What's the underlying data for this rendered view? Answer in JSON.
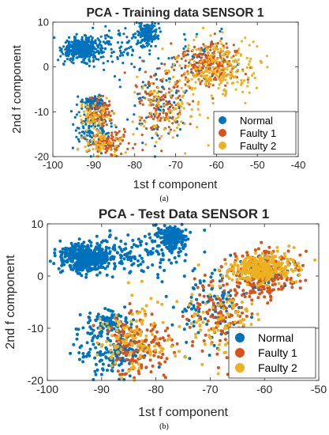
{
  "captions": [
    "(a)",
    "(b)"
  ],
  "colors": {
    "Normal": "#0072BD",
    "Faulty 1": "#D95319",
    "Faulty 2": "#EDB120"
  },
  "chart_data": [
    {
      "type": "scatter",
      "title": "PCA - Training data SENSOR 1",
      "xlabel": "1st f component",
      "ylabel": "2nd f component",
      "xlim": [
        -100,
        -40
      ],
      "ylim": [
        -20,
        10
      ],
      "xticks": [
        -100,
        -90,
        -80,
        -70,
        -60,
        -50,
        -40
      ],
      "yticks": [
        -20,
        -10,
        0,
        10
      ],
      "grid": false,
      "legend_position": "bottom-right",
      "series": [
        {
          "name": "Normal",
          "clusters": [
            {
              "cx": -93,
              "cy": 4,
              "sx": 2.2,
              "sy": 1.2,
              "n": 420
            },
            {
              "cx": -77,
              "cy": 7.5,
              "sx": 1.3,
              "sy": 1.3,
              "n": 180
            },
            {
              "cx": -85,
              "cy": 4.5,
              "sx": 5,
              "sy": 2.2,
              "n": 120
            },
            {
              "cx": -90,
              "cy": -8,
              "sx": 1.3,
              "sy": 0.9,
              "n": 90
            },
            {
              "cx": -90,
              "cy": -14,
              "sx": 2.2,
              "sy": 2.5,
              "n": 120
            },
            {
              "cx": -74,
              "cy": -8,
              "sx": 3.5,
              "sy": 4,
              "n": 90
            },
            {
              "cx": -63,
              "cy": 2,
              "sx": 4,
              "sy": 2.5,
              "n": 50
            }
          ]
        },
        {
          "name": "Faulty 1",
          "clusters": [
            {
              "cx": -62,
              "cy": 1,
              "sx": 4,
              "sy": 2.5,
              "n": 220
            },
            {
              "cx": -73,
              "cy": -8,
              "sx": 3.5,
              "sy": 4,
              "n": 130
            },
            {
              "cx": -88,
              "cy": -10,
              "sx": 1.5,
              "sy": 1.8,
              "n": 70
            },
            {
              "cx": -86,
              "cy": -17,
              "sx": 2.5,
              "sy": 1.3,
              "n": 90
            }
          ]
        },
        {
          "name": "Faulty 2",
          "clusters": [
            {
              "cx": -60,
              "cy": 0,
              "sx": 5,
              "sy": 3,
              "n": 230
            },
            {
              "cx": -72,
              "cy": -9,
              "sx": 4,
              "sy": 4,
              "n": 100
            },
            {
              "cx": -90,
              "cy": -11,
              "sx": 1.8,
              "sy": 1.8,
              "n": 60
            },
            {
              "cx": -88,
              "cy": -17,
              "sx": 2.5,
              "sy": 1.4,
              "n": 60
            }
          ]
        }
      ]
    },
    {
      "type": "scatter",
      "title": "PCA - Test Data SENSOR 1",
      "xlabel": "1st f component",
      "ylabel": "2nd f component",
      "xlim": [
        -100,
        -50
      ],
      "ylim": [
        -20,
        10
      ],
      "xticks": [
        -100,
        -90,
        -80,
        -70,
        -60,
        -50
      ],
      "yticks": [
        -20,
        -10,
        0,
        10
      ],
      "grid": false,
      "legend_position": "bottom-right",
      "series": [
        {
          "name": "Normal",
          "clusters": [
            {
              "cx": -93,
              "cy": 3.5,
              "sx": 2.3,
              "sy": 1.3,
              "n": 480
            },
            {
              "cx": -77,
              "cy": 7.5,
              "sx": 1.2,
              "sy": 1.3,
              "n": 220
            },
            {
              "cx": -85,
              "cy": 4,
              "sx": 5,
              "sy": 2.2,
              "n": 140
            },
            {
              "cx": -89,
              "cy": -9,
              "sx": 2.5,
              "sy": 1.3,
              "n": 100
            },
            {
              "cx": -88,
              "cy": -15,
              "sx": 3,
              "sy": 2.3,
              "n": 150
            },
            {
              "cx": -70,
              "cy": -6,
              "sx": 3.5,
              "sy": 3.5,
              "n": 100
            },
            {
              "cx": -61,
              "cy": 1,
              "sx": 3,
              "sy": 1.8,
              "n": 60
            }
          ]
        },
        {
          "name": "Faulty 1",
          "clusters": [
            {
              "cx": -60,
              "cy": 0,
              "sx": 3.2,
              "sy": 2.5,
              "n": 220
            },
            {
              "cx": -68,
              "cy": -8,
              "sx": 3,
              "sy": 3.5,
              "n": 120
            },
            {
              "cx": -83,
              "cy": -13,
              "sx": 3,
              "sy": 3,
              "n": 160
            }
          ]
        },
        {
          "name": "Faulty 2",
          "clusters": [
            {
              "cx": -61,
              "cy": 1.5,
              "sx": 3,
              "sy": 1.4,
              "n": 300
            },
            {
              "cx": -68,
              "cy": -8,
              "sx": 3.5,
              "sy": 3.5,
              "n": 100
            },
            {
              "cx": -84,
              "cy": -12,
              "sx": 3.5,
              "sy": 3.5,
              "n": 120
            }
          ]
        }
      ]
    }
  ]
}
